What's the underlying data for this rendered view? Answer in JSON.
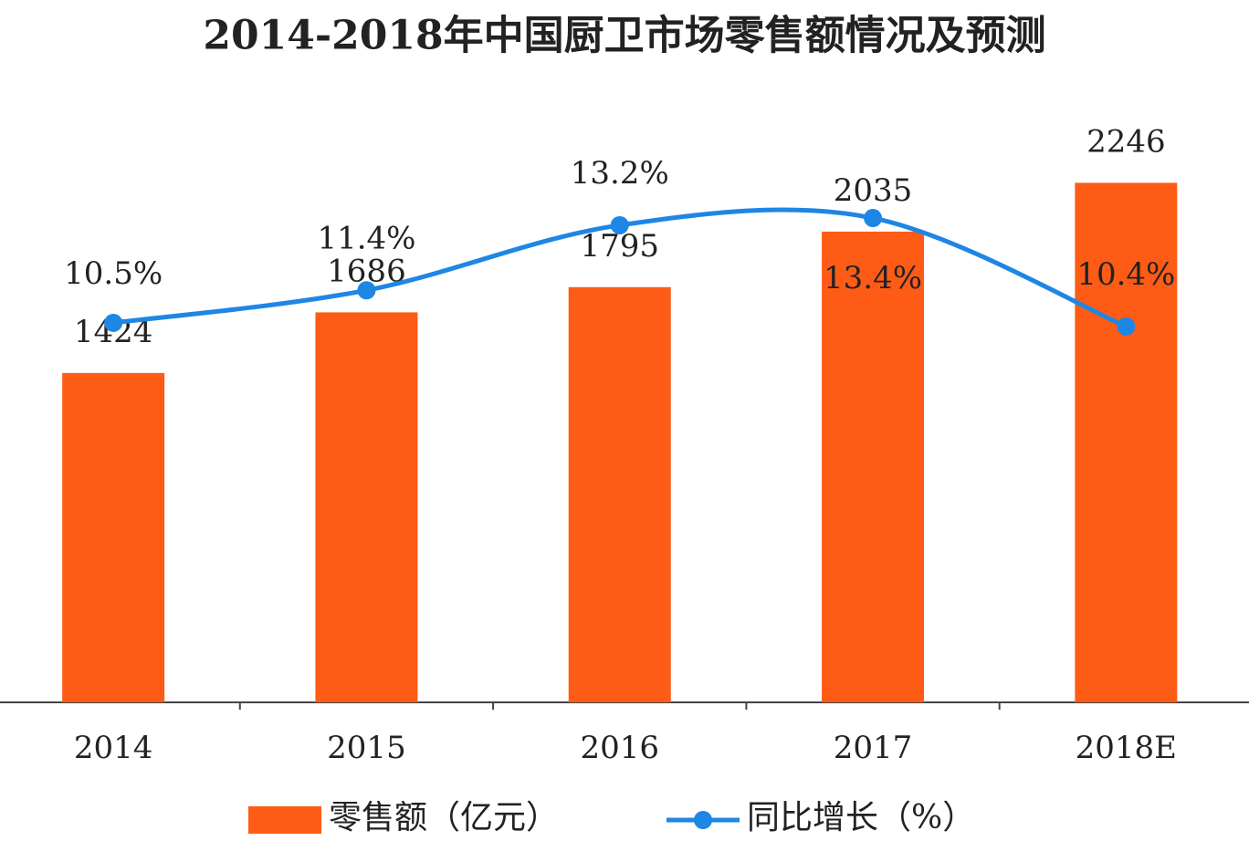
{
  "chart_data": {
    "type": "bar",
    "title": "2014-2018年中国厨卫市场零售额情况及预测",
    "categories": [
      "2014",
      "2015",
      "2016",
      "2017",
      "2018E"
    ],
    "ylim": [
      0,
      2500
    ],
    "y2lim": [
      0,
      16
    ],
    "series": [
      {
        "name": "零售额（亿元）",
        "type": "bar",
        "color": "#fe5c16",
        "values": [
          1424,
          1686,
          1795,
          2035,
          2246
        ]
      },
      {
        "name": "同比增长（%）",
        "type": "line",
        "axis": "y2",
        "color": "#1e86e4",
        "values": [
          10.5,
          11.4,
          13.2,
          13.4,
          10.4
        ],
        "value_labels": [
          "10.5%",
          "11.4%",
          "13.2%",
          "13.4%",
          "10.4%"
        ]
      }
    ]
  }
}
